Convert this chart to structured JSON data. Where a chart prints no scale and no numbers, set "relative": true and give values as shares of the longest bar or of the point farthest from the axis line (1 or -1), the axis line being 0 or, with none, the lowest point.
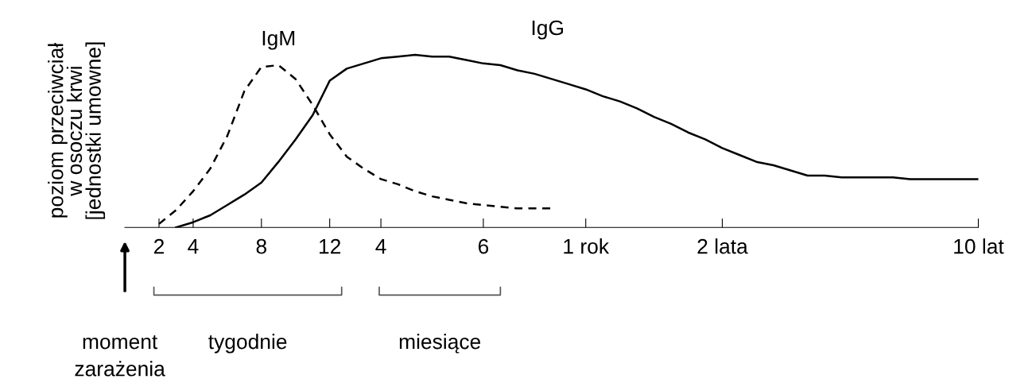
{
  "chart_data": {
    "type": "line",
    "relative": true,
    "ylabel": "poziom przeciwciał\nw osoczu krwi\n[jednostki umowne]",
    "categories": [
      null,
      null,
      "2",
      null,
      "4",
      null,
      null,
      null,
      "8",
      null,
      null,
      null,
      "12",
      null,
      null,
      "4",
      null,
      null,
      null,
      null,
      null,
      "6",
      null,
      null,
      null,
      null,
      null,
      "1 rok",
      null,
      null,
      null,
      null,
      null,
      null,
      null,
      "2 lata",
      null,
      null,
      null,
      null,
      null,
      null,
      null,
      null,
      null,
      null,
      null,
      null,
      null,
      null,
      "10 lat"
    ],
    "tick_labels": "x",
    "grid": false,
    "legend": false,
    "series": [
      {
        "name": "IgM",
        "color": "#000000",
        "line_style": "dashed",
        "values": [
          null,
          null,
          0.02,
          0.1,
          0.21,
          0.34,
          0.53,
          0.79,
          0.93,
          0.94,
          0.86,
          0.71,
          0.54,
          0.41,
          0.34,
          0.28,
          0.25,
          0.21,
          0.18,
          0.16,
          0.14,
          0.13,
          0.12,
          0.11,
          0.11,
          0.11,
          null,
          null,
          null,
          null,
          null,
          null,
          null,
          null,
          null,
          null,
          null,
          null,
          null,
          null,
          null,
          null,
          null,
          null,
          null,
          null,
          null,
          null,
          null,
          null,
          null
        ]
      },
      {
        "name": "IgG",
        "color": "#000000",
        "line_style": "solid",
        "values": [
          null,
          null,
          null,
          0,
          0.03,
          0.07,
          0.13,
          0.19,
          0.26,
          0.38,
          0.51,
          0.65,
          0.85,
          0.92,
          0.95,
          0.98,
          0.99,
          1.0,
          0.99,
          0.99,
          0.97,
          0.95,
          0.94,
          0.91,
          0.89,
          0.86,
          0.83,
          0.8,
          0.76,
          0.73,
          0.69,
          0.64,
          0.6,
          0.55,
          0.51,
          0.46,
          0.42,
          0.38,
          0.36,
          0.33,
          0.3,
          0.3,
          0.29,
          0.29,
          0.29,
          0.29,
          0.28,
          0.28,
          0.28,
          0.28,
          0.28
        ]
      }
    ],
    "annotations": [
      "moment\nzarażenia",
      "tygodnie",
      "miesiące"
    ]
  }
}
